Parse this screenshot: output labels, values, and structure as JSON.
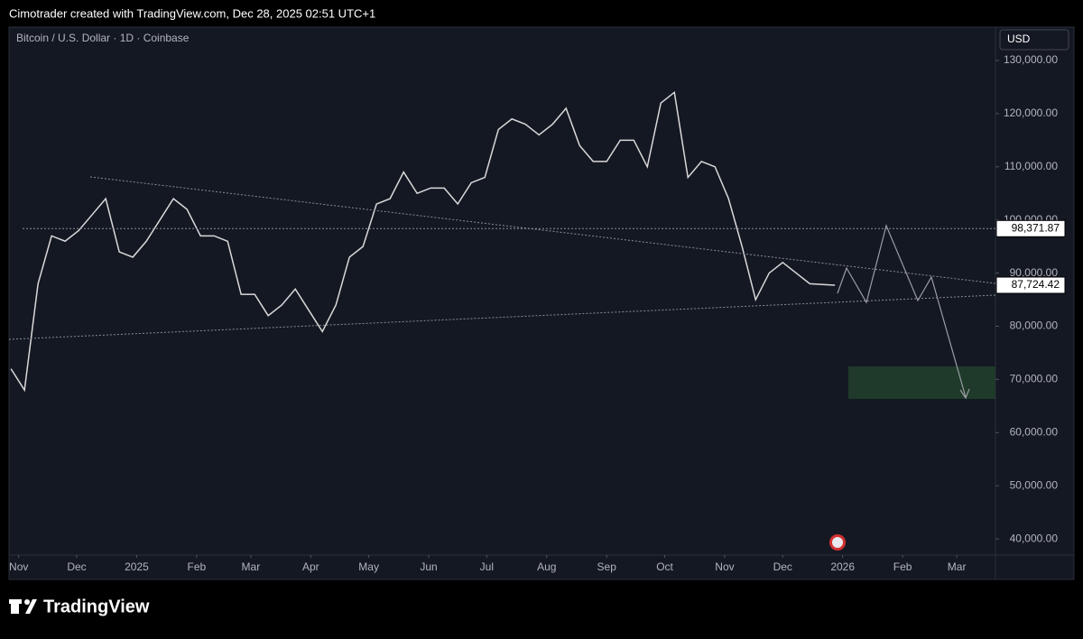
{
  "header": "Cimotrader created with TradingView.com, Dec 28, 2025 02:51 UTC+1",
  "footer": "TradingView",
  "chart_data": {
    "type": "line",
    "title": "Bitcoin / U.S. Dollar · 1D · Coinbase",
    "currency": "USD",
    "color": "#d9d9d9",
    "x": [
      "2024-10-28",
      "2024-11-04",
      "2024-11-11",
      "2024-11-18",
      "2024-11-25",
      "2024-12-02",
      "2024-12-09",
      "2024-12-16",
      "2024-12-23",
      "2024-12-30",
      "2025-01-06",
      "2025-01-13",
      "2025-01-20",
      "2025-01-27",
      "2025-02-03",
      "2025-02-10",
      "2025-02-17",
      "2025-02-24",
      "2025-03-03",
      "2025-03-10",
      "2025-03-17",
      "2025-03-24",
      "2025-03-31",
      "2025-04-07",
      "2025-04-14",
      "2025-04-21",
      "2025-04-28",
      "2025-05-05",
      "2025-05-12",
      "2025-05-19",
      "2025-05-26",
      "2025-06-02",
      "2025-06-09",
      "2025-06-16",
      "2025-06-23",
      "2025-06-30",
      "2025-07-07",
      "2025-07-14",
      "2025-07-21",
      "2025-07-28",
      "2025-08-04",
      "2025-08-11",
      "2025-08-18",
      "2025-08-25",
      "2025-09-01",
      "2025-09-08",
      "2025-09-15",
      "2025-09-22",
      "2025-09-29",
      "2025-10-06",
      "2025-10-13",
      "2025-10-20",
      "2025-10-27",
      "2025-11-03",
      "2025-11-10",
      "2025-11-17",
      "2025-11-24",
      "2025-12-01",
      "2025-12-08",
      "2025-12-15",
      "2025-12-28"
    ],
    "values": [
      72000,
      68000,
      88000,
      97000,
      96000,
      98000,
      101000,
      104000,
      94000,
      93000,
      96000,
      100000,
      104000,
      102000,
      97000,
      97000,
      96000,
      86000,
      86000,
      82000,
      84000,
      87000,
      83000,
      79000,
      84000,
      93000,
      95000,
      103000,
      104000,
      109000,
      105000,
      106000,
      106000,
      103000,
      107000,
      108000,
      117000,
      119000,
      118000,
      116000,
      118000,
      121000,
      114000,
      111000,
      111000,
      115000,
      115000,
      110000,
      122000,
      124000,
      108000,
      111000,
      110000,
      104000,
      95000,
      85000,
      90000,
      92000,
      90000,
      88000,
      87724.42
    ],
    "xlim": [
      "2024-10-27",
      "2026-03-21"
    ],
    "xticks": [
      {
        "value": "2024-11-01",
        "label": "Nov"
      },
      {
        "value": "2024-12-01",
        "label": "Dec"
      },
      {
        "value": "2025-01-01",
        "label": "2025"
      },
      {
        "value": "2025-02-01",
        "label": "Feb"
      },
      {
        "value": "2025-03-01",
        "label": "Mar"
      },
      {
        "value": "2025-04-01",
        "label": "Apr"
      },
      {
        "value": "2025-05-01",
        "label": "May"
      },
      {
        "value": "2025-06-01",
        "label": "Jun"
      },
      {
        "value": "2025-07-01",
        "label": "Jul"
      },
      {
        "value": "2025-08-01",
        "label": "Aug"
      },
      {
        "value": "2025-09-01",
        "label": "Sep"
      },
      {
        "value": "2025-10-01",
        "label": "Oct"
      },
      {
        "value": "2025-11-01",
        "label": "Nov"
      },
      {
        "value": "2025-12-01",
        "label": "Dec"
      },
      {
        "value": "2026-01-01",
        "label": "2026"
      },
      {
        "value": "2026-02-01",
        "label": "Feb"
      },
      {
        "value": "2026-03-01",
        "label": "Mar"
      }
    ],
    "ylim": [
      36960,
      136280
    ],
    "yticks": [
      {
        "value": 40000,
        "label": "40,000.00"
      },
      {
        "value": 50000,
        "label": "50,000.00"
      },
      {
        "value": 60000,
        "label": "60,000.00"
      },
      {
        "value": 70000,
        "label": "70,000.00"
      },
      {
        "value": 80000,
        "label": "80,000.00"
      },
      {
        "value": 90000,
        "label": "90,000.00"
      },
      {
        "value": 100000,
        "label": "100,000.00"
      },
      {
        "value": 110000,
        "label": "110,000.00"
      },
      {
        "value": 120000,
        "label": "120,000.00"
      },
      {
        "value": 130000,
        "label": "130,000.00"
      }
    ],
    "price_labels": [
      {
        "value": 98371.87,
        "label": "98,371.87"
      },
      {
        "value": 87724.42,
        "label": "87,724.42"
      }
    ]
  }
}
